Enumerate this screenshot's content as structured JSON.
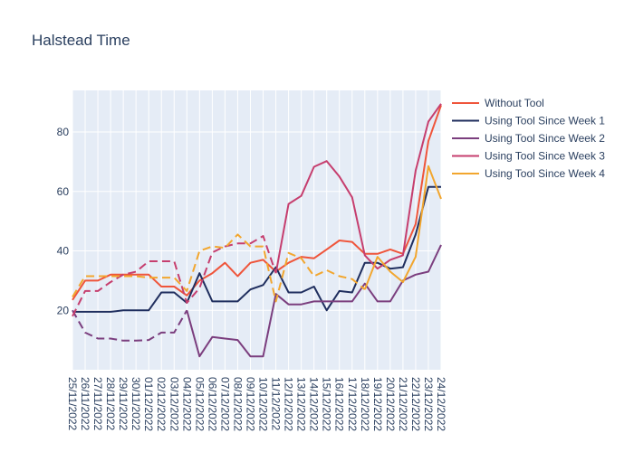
{
  "chart_data": {
    "type": "line",
    "title": "Halstead Time",
    "xlabel": "",
    "ylabel": "",
    "ylim": [
      0,
      94
    ],
    "y_ticks": [
      20,
      40,
      60,
      80
    ],
    "grid": true,
    "legend_position": "top-right",
    "plot_background": "#e5ecf6",
    "x": [
      "25/11/2022",
      "26/11/2022",
      "27/11/2022",
      "28/11/2022",
      "29/11/2022",
      "30/11/2022",
      "01/12/2022",
      "02/12/2022",
      "03/12/2022",
      "04/12/2022",
      "05/12/2022",
      "06/12/2022",
      "07/12/2022",
      "08/12/2022",
      "09/12/2022",
      "10/12/2022",
      "11/12/2022",
      "12/12/2022",
      "13/12/2022",
      "14/12/2022",
      "15/12/2022",
      "16/12/2022",
      "17/12/2022",
      "18/12/2022",
      "19/12/2022",
      "20/12/2022",
      "21/12/2022",
      "22/12/2022",
      "23/12/2022",
      "24/12/2022"
    ],
    "series": [
      {
        "name": "Without Tool",
        "color": "#ef553b",
        "dash": "solid",
        "values": [
          23.5,
          30,
          30,
          32,
          32,
          32,
          32,
          28,
          28,
          25,
          30,
          32.5,
          36,
          31.5,
          36,
          37,
          33,
          36,
          38,
          37.5,
          40.5,
          43.5,
          43,
          39,
          39,
          40.5,
          39,
          49,
          77,
          89
        ]
      },
      {
        "name": "Using Tool Since Week 1",
        "color": "#1f2e5e",
        "dash": "solid",
        "values": [
          19.5,
          19.5,
          19.5,
          19.5,
          20,
          20,
          20,
          26,
          26,
          22.5,
          32.5,
          23,
          23,
          23,
          27,
          28.5,
          34.5,
          26,
          26,
          28,
          20,
          26.5,
          26,
          36,
          36,
          34,
          34.5,
          45.5,
          61.5,
          61.5
        ]
      },
      {
        "name": "Using Tool Since Week 2",
        "color": "#7b3e7e",
        "dash": "solid",
        "values": [
          null,
          null,
          null,
          null,
          null,
          null,
          null,
          null,
          null,
          20,
          4.5,
          11,
          10.5,
          10,
          4.5,
          4.5,
          25.5,
          22,
          22,
          23,
          23,
          23,
          23,
          29,
          23,
          23,
          30,
          32,
          33,
          42
        ]
      },
      {
        "name": "Using Tool Since Week 2",
        "color": "#7b3e7e",
        "dash": "dash",
        "values": [
          20,
          12.5,
          10.5,
          10.5,
          9.8,
          9.8,
          10,
          12.5,
          12.5,
          20,
          null,
          null,
          null,
          null,
          null,
          null,
          null,
          null,
          null,
          null,
          null,
          null,
          null,
          null,
          null,
          null,
          null,
          null,
          null,
          null
        ]
      },
      {
        "name": "Using Tool Since Week 3",
        "color": "#c63e6e",
        "dash": "solid",
        "values": [
          null,
          null,
          null,
          null,
          null,
          null,
          null,
          null,
          null,
          null,
          null,
          null,
          null,
          null,
          null,
          null,
          32.5,
          55.8,
          58.5,
          68.3,
          70.2,
          65,
          58,
          38.5,
          34,
          37,
          38.5,
          67,
          83.5,
          89.5
        ]
      },
      {
        "name": "Using Tool Since Week 3",
        "color": "#c63e6e",
        "dash": "dash",
        "values": [
          18,
          26.5,
          26.5,
          29.5,
          32,
          33,
          36.5,
          36.5,
          36.5,
          22.5,
          27.5,
          39.5,
          41.5,
          42.5,
          42.5,
          45,
          32.5,
          null,
          null,
          null,
          null,
          null,
          null,
          null,
          null,
          null,
          null,
          null,
          null,
          null
        ]
      },
      {
        "name": "Using Tool Since Week 4",
        "color": "#f2a62e",
        "dash": "solid",
        "values": [
          null,
          null,
          null,
          null,
          null,
          null,
          null,
          null,
          null,
          null,
          null,
          null,
          null,
          null,
          null,
          null,
          null,
          null,
          null,
          null,
          null,
          null,
          null,
          27,
          38,
          33,
          29.5,
          38,
          68.5,
          57.5
        ]
      },
      {
        "name": "Using Tool Since Week 4",
        "color": "#f2a62e",
        "dash": "dash",
        "values": [
          24.5,
          31.5,
          31.5,
          31.5,
          31.5,
          31.5,
          31,
          31,
          31,
          26.5,
          40,
          41.5,
          41,
          45.5,
          41.5,
          41.5,
          23,
          39.3,
          37.5,
          31.5,
          33.5,
          31.5,
          30.5,
          27,
          null,
          null,
          null,
          null,
          null,
          null
        ]
      }
    ],
    "legend": [
      {
        "label": "Without Tool",
        "color": "#ef553b"
      },
      {
        "label": "Using Tool Since Week 1",
        "color": "#1f2e5e"
      },
      {
        "label": "Using Tool Since Week 2",
        "color": "#7b3e7e"
      },
      {
        "label": "Using Tool Since Week 3",
        "color": "#c63e6e"
      },
      {
        "label": "Using Tool Since Week 4",
        "color": "#f2a62e"
      }
    ]
  }
}
